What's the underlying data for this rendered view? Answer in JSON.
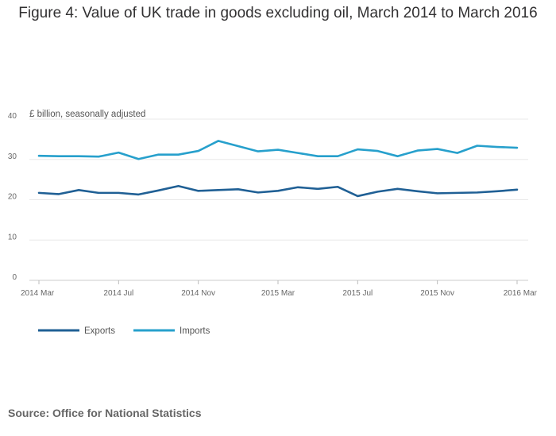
{
  "chart_data": {
    "type": "line",
    "title": "Figure 4: Value of UK trade in goods excluding oil, March 2014 to March 2016",
    "ylabel": "£ billion, seasonally adjusted",
    "xlabel": "",
    "ylim": [
      0,
      40
    ],
    "yticks": [
      0,
      10,
      20,
      30,
      40
    ],
    "x": [
      "2014 Mar",
      "2014 Apr",
      "2014 May",
      "2014 Jun",
      "2014 Jul",
      "2014 Aug",
      "2014 Sep",
      "2014 Oct",
      "2014 Nov",
      "2014 Dec",
      "2015 Jan",
      "2015 Feb",
      "2015 Mar",
      "2015 Apr",
      "2015 May",
      "2015 Jun",
      "2015 Jul",
      "2015 Aug",
      "2015 Sep",
      "2015 Oct",
      "2015 Nov",
      "2015 Dec",
      "2016 Jan",
      "2016 Feb",
      "2016 Mar"
    ],
    "xticks": [
      {
        "label": "2014 Mar",
        "index": 0
      },
      {
        "label": "2014 Jul",
        "index": 4
      },
      {
        "label": "2014 Nov",
        "index": 8
      },
      {
        "label": "2015 Mar",
        "index": 12
      },
      {
        "label": "2015 Jul",
        "index": 16
      },
      {
        "label": "2015 Nov",
        "index": 20
      },
      {
        "label": "2016 Mar",
        "index": 24
      }
    ],
    "grid": true,
    "legend_position": "bottom-left",
    "series": [
      {
        "name": "Exports",
        "color": "#206095",
        "values": [
          21.7,
          21.4,
          22.4,
          21.7,
          21.7,
          21.3,
          22.3,
          23.4,
          22.2,
          22.4,
          22.6,
          21.8,
          22.2,
          23.1,
          22.7,
          23.2,
          20.9,
          22.0,
          22.7,
          22.1,
          21.6,
          21.7,
          21.8,
          22.1,
          22.5
        ]
      },
      {
        "name": "Imports",
        "color": "#27A0CC",
        "values": [
          30.9,
          30.8,
          30.8,
          30.7,
          31.7,
          30.1,
          31.2,
          31.2,
          32.1,
          34.6,
          33.3,
          32.0,
          32.4,
          31.6,
          30.8,
          30.8,
          32.5,
          32.1,
          30.8,
          32.2,
          32.6,
          31.6,
          33.4,
          33.1,
          32.9
        ]
      }
    ]
  },
  "source": "Source: Office for National Statistics"
}
